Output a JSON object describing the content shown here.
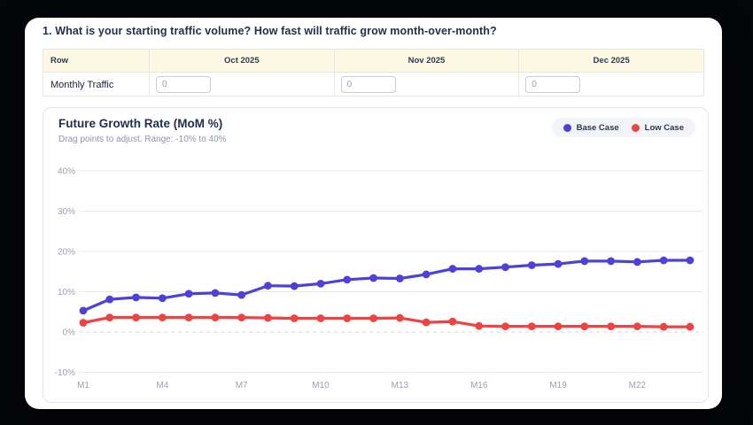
{
  "page": {
    "question": "1. What is your starting traffic volume? How fast will traffic grow month-over-month?"
  },
  "table": {
    "headers": [
      "Row",
      "Oct 2025",
      "Nov 2025",
      "Dec 2025"
    ],
    "rows": [
      {
        "label": "Monthly Traffic",
        "inputs": [
          {
            "column": "Oct 2025",
            "value": "0"
          },
          {
            "column": "Nov 2025",
            "value": "0"
          },
          {
            "column": "Dec 2025",
            "value": "0"
          }
        ]
      }
    ]
  },
  "chart": {
    "title": "Future Growth Rate (MoM %)",
    "subtitle": "Drag points to adjust. Range: -10% to 40%",
    "legend": [
      {
        "label": "Base Case",
        "color": "#4e41d9"
      },
      {
        "label": "Low Case",
        "color": "#ee4343"
      }
    ]
  },
  "chart_data": {
    "type": "line",
    "x": [
      1,
      2,
      3,
      4,
      5,
      6,
      7,
      8,
      9,
      10,
      11,
      12,
      13,
      14,
      15,
      16,
      17,
      18,
      19,
      20,
      21,
      22,
      23,
      24
    ],
    "x_tick_positions": [
      1,
      4,
      7,
      10,
      13,
      16,
      19,
      22
    ],
    "x_tick_labels": [
      "M1",
      "M4",
      "M7",
      "M10",
      "M13",
      "M16",
      "M19",
      "M22"
    ],
    "y_ticks": [
      40,
      30,
      20,
      10,
      0,
      -10
    ],
    "y_tick_labels": [
      "40%",
      "30%",
      "20%",
      "10%",
      "0%",
      "-10%"
    ],
    "ylim": [
      -10,
      40
    ],
    "grid": "horizontal",
    "zero_line_dashed": true,
    "legend_position": "top-right",
    "series": [
      {
        "name": "Base Case",
        "color": "#4e41d9",
        "values": [
          5.3,
          8.1,
          8.6,
          8.4,
          9.5,
          9.7,
          9.2,
          11.5,
          11.4,
          12.0,
          13.0,
          13.4,
          13.3,
          14.3,
          15.7,
          15.7,
          16.1,
          16.6,
          16.9,
          17.6,
          17.6,
          17.4,
          17.8,
          17.8
        ]
      },
      {
        "name": "Low Case",
        "color": "#ee4343",
        "values": [
          2.3,
          3.6,
          3.6,
          3.6,
          3.6,
          3.6,
          3.6,
          3.5,
          3.4,
          3.4,
          3.4,
          3.4,
          3.5,
          2.4,
          2.6,
          1.5,
          1.4,
          1.4,
          1.4,
          1.4,
          1.4,
          1.4,
          1.3,
          1.3
        ]
      }
    ],
    "colors": {
      "grid": "#e9eaee",
      "zero_line": "#d4d6dc",
      "tick_label": "#9aa0b0"
    }
  }
}
